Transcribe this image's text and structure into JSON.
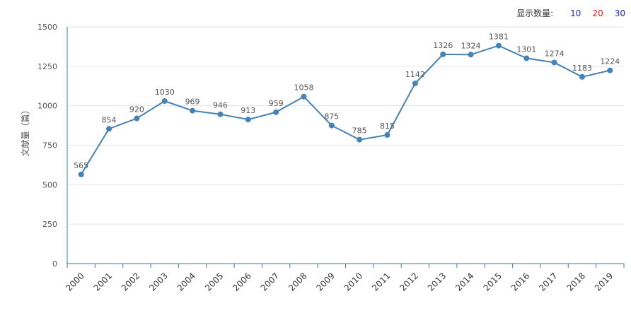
{
  "controls": {
    "count_label": "显示数量:",
    "options": [
      {
        "label": "10",
        "color": "#2222cc"
      },
      {
        "label": "20",
        "color": "#dd1111"
      },
      {
        "label": "30",
        "color": "#2222cc"
      }
    ]
  },
  "chart_data": {
    "type": "line",
    "ylabel": "文献量（篇）",
    "ylim": [
      0,
      1500
    ],
    "yticks": [
      0,
      250,
      500,
      750,
      1000,
      1250,
      1500
    ],
    "grid": true,
    "x": [
      "2000",
      "2001",
      "2002",
      "2003",
      "2004",
      "2005",
      "2006",
      "2007",
      "2008",
      "2009",
      "2010",
      "2011",
      "2012",
      "2013",
      "2014",
      "2015",
      "2016",
      "2017",
      "2018",
      "2019"
    ],
    "series": [
      {
        "values": [
          565,
          854,
          920,
          1030,
          969,
          946,
          913,
          959,
          1058,
          875,
          785,
          815,
          1142,
          1326,
          1324,
          1381,
          1301,
          1274,
          1183,
          1224
        ],
        "color": "#4682b4"
      }
    ]
  }
}
